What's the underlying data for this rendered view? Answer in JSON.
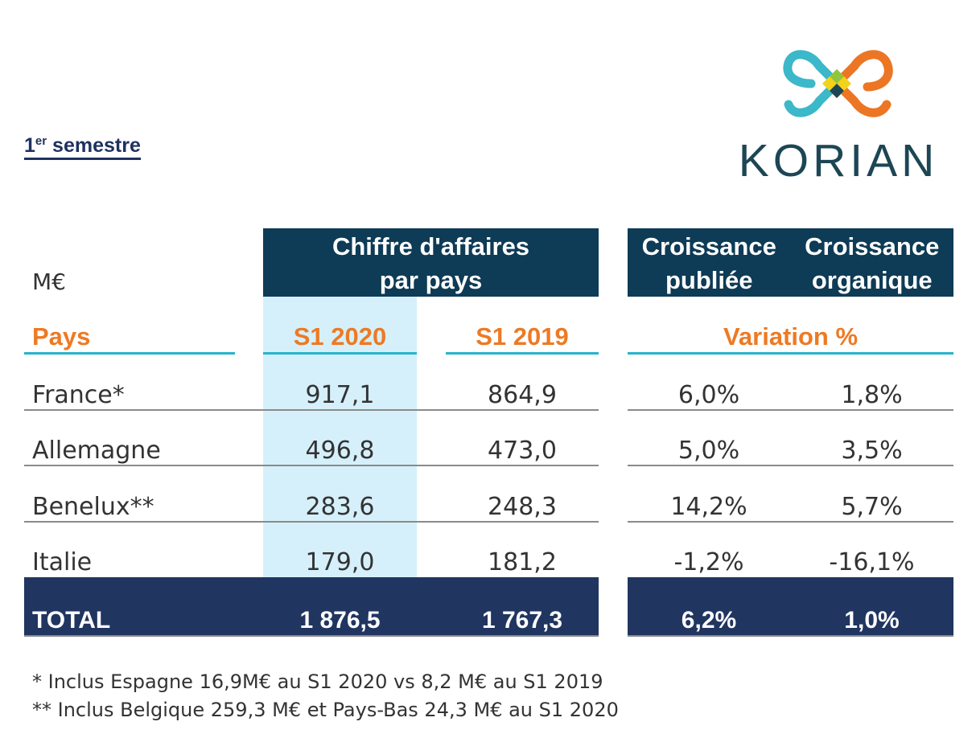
{
  "title": {
    "superscript_base": "1",
    "superscript": "er",
    "text": " semestre"
  },
  "logo": {
    "wordmark": "KORIAN"
  },
  "unit": "M€",
  "headers": {
    "revenue_line1": "Chiffre d'affaires",
    "revenue_line2": "par pays",
    "published_line1": "Croissance",
    "published_line2": "publiée",
    "organic_line1": "Croissance",
    "organic_line2": "organique"
  },
  "subheaders": {
    "country": "Pays",
    "s1_2020": "S1 2020",
    "s1_2019": "S1 2019",
    "variation": "Variation %"
  },
  "rows": [
    {
      "country": "France*",
      "s1_2020": "917,1",
      "s1_2019": "864,9",
      "published": "6,0%",
      "organic": "1,8%"
    },
    {
      "country": "Allemagne",
      "s1_2020": "496,8",
      "s1_2019": "473,0",
      "published": "5,0%",
      "organic": "3,5%"
    },
    {
      "country": "Benelux**",
      "s1_2020": "283,6",
      "s1_2019": "248,3",
      "published": "14,2%",
      "organic": "5,7%"
    },
    {
      "country": "Italie",
      "s1_2020": "179,0",
      "s1_2019": "181,2",
      "published": "-1,2%",
      "organic": "-16,1%"
    }
  ],
  "total": {
    "label": "TOTAL",
    "s1_2020": "1 876,5",
    "s1_2019": "1 767,3",
    "published": "6,2%",
    "organic": "1,0%"
  },
  "footnotes": [
    "* Inclus Espagne 16,9M€ au S1 2020 vs 8,2 M€ au S1 2019",
    "** Inclus Belgique 259,3 M€ et Pays-Bas 24,3 M€ au S1 2020"
  ],
  "colors": {
    "navy": "#0e3b56",
    "total_navy": "#213561",
    "orange": "#ed7a24",
    "teal": "#27b3cc",
    "light_blue": "#d5f0fa"
  }
}
